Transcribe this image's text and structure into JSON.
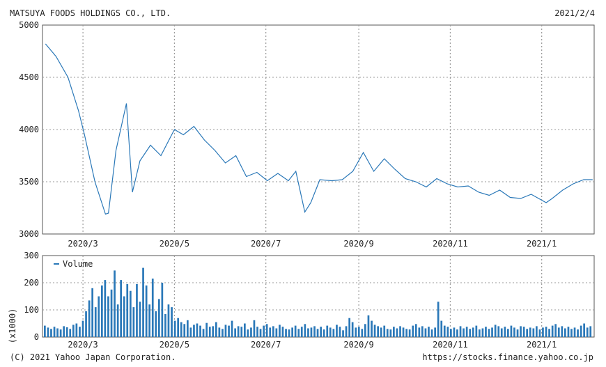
{
  "header": {
    "company": "MATSUYA FOODS HOLDINGS CO., LTD.",
    "date": "2021/2/4"
  },
  "footer": {
    "copyright": "(C) 2021 Yahoo Japan Corporation.",
    "url": "https://stocks.finance.yahoo.co.jp"
  },
  "colors": {
    "line": "#2a78b8",
    "grid": "#999999",
    "frame": "#555555"
  },
  "chart_data": [
    {
      "type": "line",
      "ylim": [
        3000,
        5000
      ],
      "y_ticks": [
        "5000",
        "4500",
        "4000",
        "3500",
        "3000"
      ],
      "x_ticks": [
        "2020/3",
        "2020/5",
        "2020/7",
        "2020/9",
        "2020/11",
        "2021/1"
      ],
      "grid": true,
      "x": [
        "2020/2/5",
        "2020/2/12",
        "2020/2/20",
        "2020/2/27",
        "2020/3/2",
        "2020/3/9",
        "2020/3/16",
        "2020/3/18",
        "2020/3/23",
        "2020/3/30",
        "2020/4/3",
        "2020/4/8",
        "2020/4/15",
        "2020/4/22",
        "2020/5/1",
        "2020/5/7",
        "2020/5/14",
        "2020/5/21",
        "2020/5/28",
        "2020/6/4",
        "2020/6/11",
        "2020/6/18",
        "2020/6/25",
        "2020/7/2",
        "2020/7/9",
        "2020/7/16",
        "2020/7/21",
        "2020/7/27",
        "2020/7/31",
        "2020/8/6",
        "2020/8/14",
        "2020/8/21",
        "2020/8/28",
        "2020/9/4",
        "2020/9/11",
        "2020/9/18",
        "2020/9/25",
        "2020/10/2",
        "2020/10/9",
        "2020/10/16",
        "2020/10/23",
        "2020/10/30",
        "2020/11/6",
        "2020/11/13",
        "2020/11/20",
        "2020/11/27",
        "2020/12/4",
        "2020/12/11",
        "2020/12/18",
        "2020/12/25",
        "2021/1/4",
        "2021/1/8",
        "2021/1/15",
        "2021/1/22",
        "2021/1/29",
        "2021/2/4"
      ],
      "values": [
        4820,
        4700,
        4500,
        4180,
        3950,
        3500,
        3190,
        3200,
        3800,
        4250,
        3400,
        3700,
        3850,
        3750,
        4000,
        3950,
        4030,
        3900,
        3800,
        3680,
        3750,
        3550,
        3590,
        3510,
        3580,
        3510,
        3600,
        3210,
        3300,
        3520,
        3510,
        3520,
        3600,
        3780,
        3600,
        3720,
        3620,
        3530,
        3500,
        3450,
        3530,
        3480,
        3450,
        3460,
        3400,
        3370,
        3420,
        3350,
        3340,
        3380,
        3300,
        3340,
        3420,
        3480,
        3520,
        3520
      ]
    },
    {
      "type": "bar",
      "ylim": [
        0,
        300
      ],
      "y_ticks": [
        "300",
        "200",
        "100",
        "0"
      ],
      "ylabel": "(x1000)",
      "series": [
        {
          "name": "Volume"
        }
      ],
      "x_ticks": [
        "2020/3",
        "2020/5",
        "2020/7",
        "2020/9",
        "2020/11",
        "2021/1"
      ],
      "grid": true,
      "values": [
        42,
        35,
        30,
        38,
        32,
        28,
        40,
        36,
        30,
        45,
        50,
        38,
        60,
        95,
        135,
        180,
        110,
        150,
        190,
        210,
        150,
        175,
        245,
        120,
        210,
        150,
        195,
        170,
        110,
        195,
        130,
        255,
        190,
        120,
        215,
        95,
        140,
        200,
        85,
        120,
        110,
        60,
        70,
        55,
        48,
        62,
        35,
        45,
        50,
        42,
        30,
        52,
        38,
        40,
        55,
        35,
        30,
        45,
        42,
        60,
        32,
        40,
        38,
        50,
        28,
        35,
        62,
        38,
        30,
        42,
        48,
        35,
        40,
        32,
        45,
        38,
        30,
        28,
        35,
        42,
        30,
        38,
        48,
        32,
        35,
        40,
        30,
        38,
        28,
        42,
        35,
        30,
        45,
        38,
        25,
        40,
        70,
        55,
        35,
        38,
        30,
        48,
        80,
        60,
        45,
        40,
        35,
        42,
        30,
        28,
        38,
        32,
        40,
        35,
        30,
        28,
        42,
        48,
        35,
        40,
        32,
        38,
        28,
        35,
        130,
        60,
        42,
        38,
        30,
        35,
        28,
        40,
        32,
        38,
        30,
        35,
        42,
        28,
        32,
        38,
        30,
        35,
        45,
        40,
        32,
        38,
        30,
        42,
        35,
        28,
        40,
        38,
        30,
        35,
        32,
        40,
        28,
        35,
        38,
        30,
        42,
        48,
        35,
        40,
        32,
        38,
        30,
        35,
        28,
        42,
        50,
        35,
        40
      ]
    }
  ]
}
